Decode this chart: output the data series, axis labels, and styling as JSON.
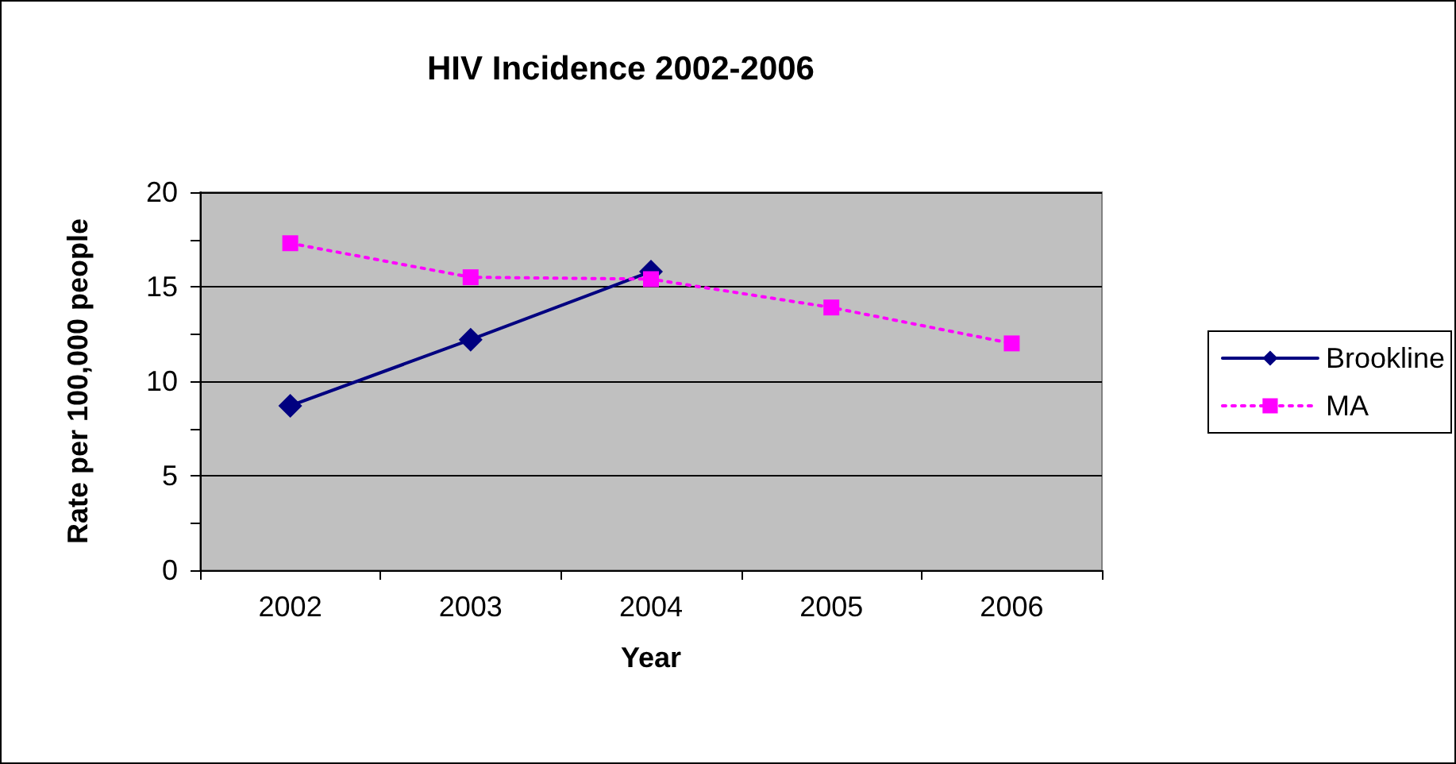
{
  "chart_data": {
    "type": "line",
    "title": "HIV Incidence 2002-2006",
    "xlabel": "Year",
    "ylabel": "Rate per 100,000 people",
    "categories": [
      "2002",
      "2003",
      "2004",
      "2005",
      "2006"
    ],
    "series": [
      {
        "name": "Brookline",
        "color": "#000080",
        "values": [
          8.7,
          12.2,
          15.8,
          null,
          null
        ],
        "marker": "diamond",
        "line_style": "solid"
      },
      {
        "name": "MA",
        "color": "#ff00ff",
        "values": [
          17.3,
          15.5,
          15.4,
          13.9,
          12.0
        ],
        "marker": "square",
        "line_style": "dotted"
      }
    ],
    "ylim": [
      0,
      20
    ],
    "yticks": [
      0,
      5,
      10,
      15,
      20
    ],
    "grid": "y",
    "legend": "right"
  }
}
